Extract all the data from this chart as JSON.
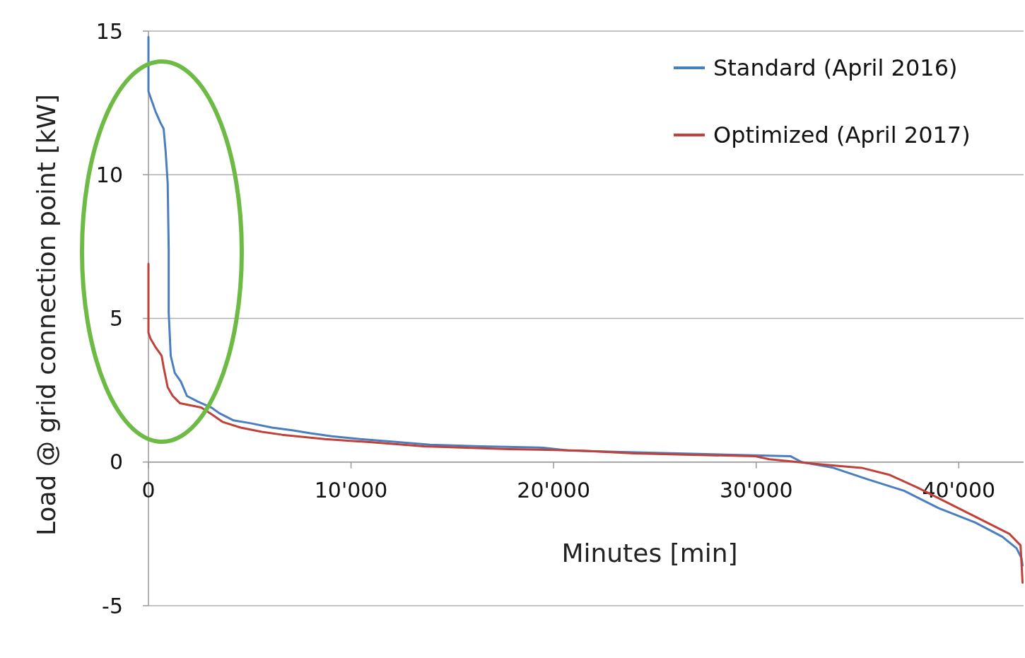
{
  "chart_data": {
    "type": "line",
    "xlabel": "Minutes [min]",
    "ylabel": "Load @ grid connection point [kW]",
    "xlim": [
      0,
      43200
    ],
    "xticks": [
      {
        "value": 0,
        "label": "0"
      },
      {
        "value": 10000,
        "label": "10'000"
      },
      {
        "value": 20000,
        "label": "20'000"
      },
      {
        "value": 30000,
        "label": "30'000"
      },
      {
        "value": 40000,
        "label": "40'000"
      }
    ],
    "ylim": [
      -5,
      15
    ],
    "yticks": [
      -5,
      0,
      5,
      10,
      15
    ],
    "grid": "y",
    "legend": "top right",
    "series": [
      {
        "name": "Standard (April 2016)",
        "color": "#4a7ebf",
        "x": [
          0,
          0,
          100,
          350,
          600,
          750,
          850,
          950,
          1000,
          1000,
          1100,
          1300,
          1600,
          1900,
          2450,
          3100,
          3500,
          4200,
          5050,
          6100,
          7150,
          8000,
          9050,
          10450,
          12200,
          13900,
          16400,
          19500,
          20750,
          23350,
          31700,
          32250,
          33800,
          35500,
          37300,
          39000,
          40800,
          42150,
          42850,
          43100,
          43150
        ],
        "values": [
          14.8,
          12.9,
          12.7,
          12.2,
          11.8,
          11.6,
          10.8,
          9.7,
          7.4,
          5.2,
          3.7,
          3.1,
          2.8,
          2.3,
          2.1,
          1.9,
          1.7,
          1.45,
          1.35,
          1.2,
          1.1,
          1.0,
          0.9,
          0.8,
          0.7,
          0.6,
          0.55,
          0.5,
          0.4,
          0.35,
          0.2,
          0.0,
          -0.2,
          -0.6,
          -1.0,
          -1.6,
          -2.1,
          -2.6,
          -3.0,
          -3.35,
          -3.6
        ]
      },
      {
        "name": "Optimized (April 2017)",
        "color": "#c0403a",
        "x": [
          0,
          0,
          100,
          350,
          650,
          750,
          950,
          1200,
          1550,
          2600,
          3150,
          3650,
          4550,
          5600,
          6600,
          8700,
          10800,
          13600,
          17800,
          21250,
          24000,
          29950,
          30650,
          32050,
          33450,
          35200,
          36600,
          38000,
          39400,
          41100,
          42500,
          43050,
          43150
        ],
        "values": [
          6.9,
          4.5,
          4.3,
          4.0,
          3.7,
          3.3,
          2.6,
          2.3,
          2.05,
          1.9,
          1.65,
          1.4,
          1.2,
          1.05,
          0.95,
          0.8,
          0.7,
          0.55,
          0.45,
          0.4,
          0.3,
          0.2,
          0.1,
          0.0,
          -0.1,
          -0.2,
          -0.45,
          -0.9,
          -1.4,
          -2.0,
          -2.5,
          -2.9,
          -4.2
        ]
      }
    ]
  }
}
